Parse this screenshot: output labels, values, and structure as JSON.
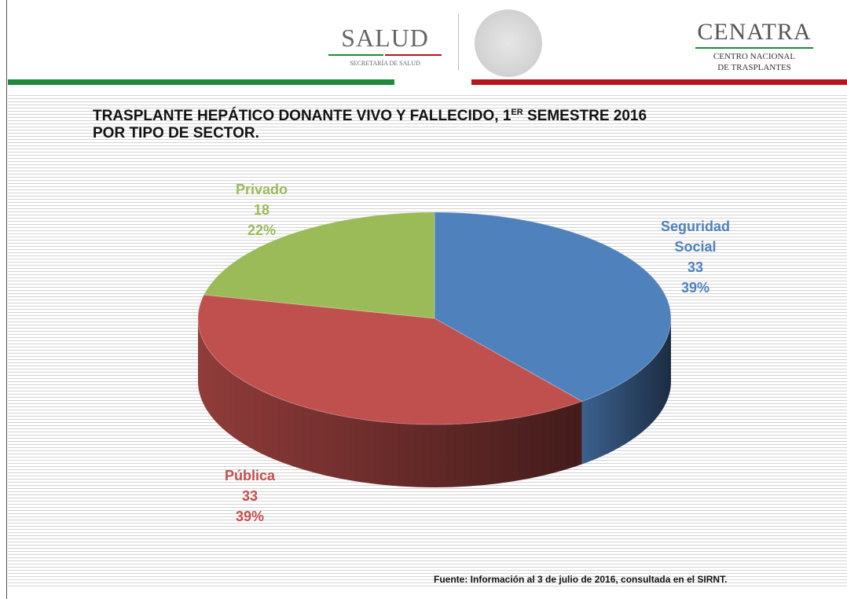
{
  "header": {
    "left_logo": "SALUD",
    "left_logo_sub": "SECRETARÍA DE SALUD",
    "right_logo": "CENATRA",
    "right_logo_sub1": "CENTRO NACIONAL",
    "right_logo_sub2": "DE TRASPLANTES"
  },
  "chart_data": {
    "type": "pie",
    "title": "TRASPLANTE HEPÁTICO DONANTE VIVO Y FALLECIDO, 1",
    "title_superscript": "ER",
    "title_rest": "SEMESTRE 2016",
    "title_line2": "POR TIPO DE SECTOR.",
    "categories": [
      "Seguridad Social",
      "Pública",
      "Privado"
    ],
    "values": [
      33,
      33,
      18
    ],
    "percentages": [
      39,
      39,
      22
    ],
    "percent_labels": [
      "39%",
      "39%",
      "22%"
    ],
    "colors": [
      "#4f81bd",
      "#c0504d",
      "#9bbb59"
    ],
    "style": "3d"
  },
  "footer": {
    "source": "Fuente: Información al 3 de julio de 2016, consultada en el SIRNT."
  }
}
